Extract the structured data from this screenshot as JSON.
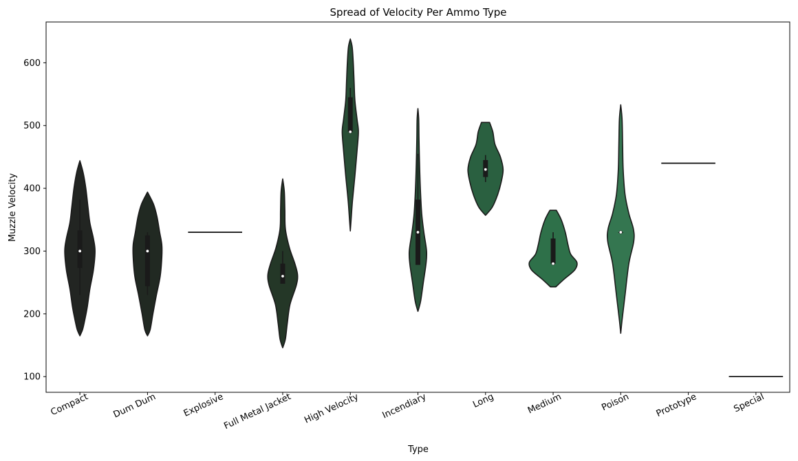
{
  "chart_data": {
    "type": "violin",
    "title": "Spread of Velocity Per Ammo Type",
    "xlabel": "Type",
    "ylabel": "Muzzle Velocity",
    "ylim": [
      75,
      665
    ],
    "yticks": [
      100,
      200,
      300,
      400,
      500,
      600
    ],
    "grid": false,
    "categories": [
      "Compact",
      "Dum Dum",
      "Explosive",
      "Full Metal Jacket",
      "High Velocity",
      "Incendiary",
      "Long",
      "Medium",
      "Poison",
      "Prototype",
      "Special"
    ],
    "violins": [
      {
        "category": "Compact",
        "color": "#222522",
        "min": 165,
        "max": 444,
        "profile": [
          [
            165,
            0
          ],
          [
            175,
            0.1
          ],
          [
            190,
            0.18
          ],
          [
            210,
            0.27
          ],
          [
            240,
            0.37
          ],
          [
            270,
            0.5
          ],
          [
            300,
            0.56
          ],
          [
            320,
            0.5
          ],
          [
            345,
            0.37
          ],
          [
            370,
            0.3
          ],
          [
            400,
            0.22
          ],
          [
            425,
            0.12
          ],
          [
            444,
            0
          ]
        ],
        "median": 300,
        "q1": 273,
        "q3": 333,
        "whisker_low": 230,
        "whisker_high": 382
      },
      {
        "category": "Dum Dum",
        "color": "#212922",
        "min": 165,
        "max": 394,
        "profile": [
          [
            165,
            0
          ],
          [
            175,
            0.1
          ],
          [
            200,
            0.2
          ],
          [
            230,
            0.33
          ],
          [
            260,
            0.47
          ],
          [
            290,
            0.53
          ],
          [
            310,
            0.53
          ],
          [
            330,
            0.45
          ],
          [
            355,
            0.35
          ],
          [
            375,
            0.22
          ],
          [
            394,
            0
          ]
        ],
        "median": 300,
        "q1": 244,
        "q3": 325,
        "whisker_low": 230,
        "whisker_high": 330
      },
      {
        "category": "Explosive",
        "color": "#232d26",
        "line_only": true,
        "value": 330
      },
      {
        "category": "Full Metal Jacket",
        "color": "#243727",
        "min": 146,
        "max": 415,
        "profile": [
          [
            146,
            0
          ],
          [
            160,
            0.1
          ],
          [
            185,
            0.17
          ],
          [
            215,
            0.27
          ],
          [
            245,
            0.5
          ],
          [
            262,
            0.55
          ],
          [
            280,
            0.45
          ],
          [
            305,
            0.25
          ],
          [
            335,
            0.1
          ],
          [
            365,
            0.08
          ],
          [
            395,
            0.06
          ],
          [
            415,
            0
          ]
        ],
        "median": 260,
        "q1": 248,
        "q3": 280,
        "whisker_low": 248,
        "whisker_high": 300
      },
      {
        "category": "High Velocity",
        "color": "#284e35",
        "min": 332,
        "max": 638,
        "profile": [
          [
            332,
            0
          ],
          [
            350,
            0.03
          ],
          [
            380,
            0.08
          ],
          [
            420,
            0.17
          ],
          [
            460,
            0.25
          ],
          [
            490,
            0.3
          ],
          [
            510,
            0.25
          ],
          [
            540,
            0.17
          ],
          [
            570,
            0.14
          ],
          [
            600,
            0.11
          ],
          [
            625,
            0.07
          ],
          [
            638,
            0
          ]
        ],
        "median": 490,
        "q1": 490,
        "q3": 545,
        "whisker_low": 490,
        "whisker_high": 560
      },
      {
        "category": "Incendiary",
        "color": "#29553a",
        "min": 204,
        "max": 527,
        "profile": [
          [
            204,
            0
          ],
          [
            220,
            0.1
          ],
          [
            250,
            0.2
          ],
          [
            280,
            0.3
          ],
          [
            300,
            0.32
          ],
          [
            330,
            0.22
          ],
          [
            360,
            0.14
          ],
          [
            400,
            0.09
          ],
          [
            440,
            0.06
          ],
          [
            480,
            0.04
          ],
          [
            510,
            0.03
          ],
          [
            527,
            0
          ]
        ],
        "median": 330,
        "q1": 278,
        "q3": 382,
        "whisker_low": 278,
        "whisker_high": 455
      },
      {
        "category": "Long",
        "color": "#2a6040",
        "min": 357,
        "max": 505,
        "profile": [
          [
            357,
            0
          ],
          [
            370,
            0.25
          ],
          [
            390,
            0.45
          ],
          [
            410,
            0.58
          ],
          [
            430,
            0.65
          ],
          [
            450,
            0.55
          ],
          [
            470,
            0.35
          ],
          [
            490,
            0.27
          ],
          [
            505,
            0.15
          ]
        ],
        "flat_top": true,
        "median": 430,
        "q1": 418,
        "q3": 445,
        "whisker_low": 410,
        "whisker_high": 453
      },
      {
        "category": "Medium",
        "color": "#2e7049",
        "min": 243,
        "max": 365,
        "profile": [
          [
            243,
            0.1
          ],
          [
            255,
            0.4
          ],
          [
            270,
            0.8
          ],
          [
            282,
            0.88
          ],
          [
            295,
            0.65
          ],
          [
            310,
            0.55
          ],
          [
            330,
            0.45
          ],
          [
            350,
            0.3
          ],
          [
            365,
            0.12
          ]
        ],
        "flat_top": true,
        "flat_bottom": true,
        "median": 280,
        "q1": 280,
        "q3": 320,
        "whisker_low": 280,
        "whisker_high": 330
      },
      {
        "category": "Poison",
        "color": "#347650",
        "min": 169,
        "max": 533,
        "profile": [
          [
            169,
            0
          ],
          [
            190,
            0.05
          ],
          [
            230,
            0.16
          ],
          [
            280,
            0.3
          ],
          [
            315,
            0.48
          ],
          [
            335,
            0.47
          ],
          [
            360,
            0.3
          ],
          [
            390,
            0.16
          ],
          [
            430,
            0.09
          ],
          [
            470,
            0.07
          ],
          [
            510,
            0.05
          ],
          [
            533,
            0
          ]
        ],
        "median": 330,
        "q1": 330,
        "q3": 330,
        "whisker_low": 330,
        "whisker_high": 330
      },
      {
        "category": "Prototype",
        "color": "#3a7d55",
        "line_only": true,
        "value": 440
      },
      {
        "category": "Special",
        "color": "#3d8258",
        "line_only": true,
        "value": 100
      }
    ]
  }
}
